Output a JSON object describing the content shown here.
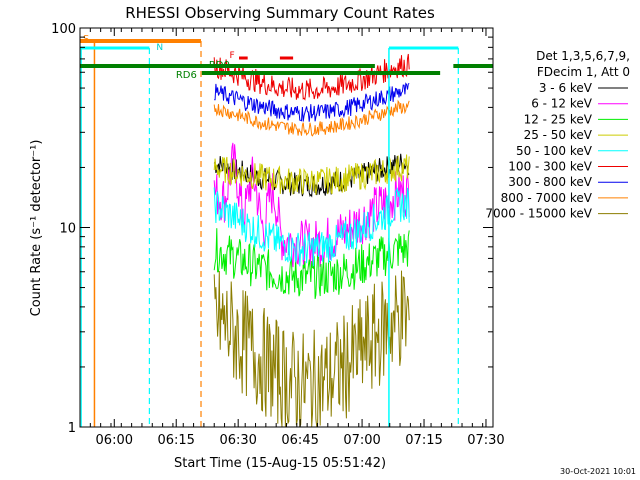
{
  "chart_data": {
    "type": "line",
    "title": "RHESSI Observing Summary Count Rates",
    "xlabel": "Start Time (15-Aug-15 05:51:42)",
    "ylabel": "Count Rate (s⁻¹ detector⁻¹)",
    "yscale": "log",
    "ylim": [
      1,
      100
    ],
    "xlim_minutes": [
      0,
      100
    ],
    "x_ticks": [
      {
        "label": "06:00",
        "min": 8.3
      },
      {
        "label": "06:15",
        "min": 23.3
      },
      {
        "label": "06:30",
        "min": 38.3
      },
      {
        "label": "06:45",
        "min": 53.3
      },
      {
        "label": "07:00",
        "min": 68.3
      },
      {
        "label": "07:15",
        "min": 83.3
      },
      {
        "label": "07:30",
        "min": 98.3
      }
    ],
    "y_ticks": [
      {
        "label": "1",
        "value": 1
      },
      {
        "label": "10",
        "value": 10
      },
      {
        "label": "100",
        "value": 100
      }
    ],
    "legend_header": [
      "Det 1,3,5,6,7,9,",
      "FDecim 1, Att 0"
    ],
    "legend_placement": "right",
    "series": [
      {
        "name": "3 - 6 keV",
        "color": "#000000"
      },
      {
        "name": "6 - 12 keV",
        "color": "#ff00ff"
      },
      {
        "name": "12 - 25 keV",
        "color": "#00ee00"
      },
      {
        "name": "25 - 50 keV",
        "color": "#cccc00"
      },
      {
        "name": "50 - 100 keV",
        "color": "#00ffff"
      },
      {
        "name": "100 - 300 keV",
        "color": "#ee0000"
      },
      {
        "name": "300 - 800 keV",
        "color": "#0000ee"
      },
      {
        "name": "800 - 7000 keV",
        "color": "#ff8000"
      },
      {
        "name": "7000 - 15000 keV",
        "color": "#8b7d00"
      }
    ],
    "flag_labels": {
      "saa": "S",
      "night": "N",
      "rd0": "RD0",
      "rd6": "RD6",
      "flare": "F"
    },
    "flag_colors": {
      "saa": "#ff8000",
      "night": "#00ffff",
      "rd": "#008000",
      "flare": "#ee0000"
    },
    "footer_date": "30-Oct-2021 10:01"
  }
}
